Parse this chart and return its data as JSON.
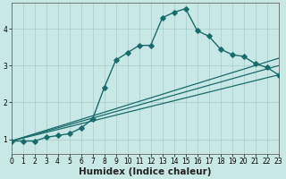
{
  "xlabel": "Humidex (Indice chaleur)",
  "xlim": [
    0,
    23
  ],
  "ylim": [
    0.6,
    4.7
  ],
  "bg_color": "#c8e8e5",
  "grid_color": "#a8ccca",
  "line_color": "#1a6b6b",
  "main_line_x": [
    0,
    1,
    2,
    3,
    4,
    5,
    6,
    7,
    8,
    9,
    10,
    11,
    12,
    13,
    14,
    15,
    16,
    17,
    18,
    19,
    20,
    21,
    22,
    23
  ],
  "main_line_y": [
    0.95,
    0.95,
    0.95,
    1.05,
    1.1,
    1.15,
    1.3,
    1.55,
    2.4,
    3.15,
    3.35,
    3.55,
    3.55,
    4.3,
    4.45,
    4.55,
    3.95,
    3.8,
    3.45,
    3.3,
    3.25,
    3.05,
    2.95,
    2.75
  ],
  "aux_lines": [
    {
      "x": [
        0,
        23
      ],
      "y": [
        0.95,
        2.75
      ]
    },
    {
      "x": [
        0,
        23
      ],
      "y": [
        0.95,
        3.0
      ]
    },
    {
      "x": [
        0,
        23
      ],
      "y": [
        0.95,
        3.2
      ]
    }
  ],
  "yticks": [
    1,
    2,
    3,
    4
  ],
  "xticks": [
    0,
    1,
    2,
    3,
    4,
    5,
    6,
    7,
    8,
    9,
    10,
    11,
    12,
    13,
    14,
    15,
    16,
    17,
    18,
    19,
    20,
    21,
    22,
    23
  ],
  "tick_fontsize": 5.5,
  "xlabel_fontsize": 7.5
}
